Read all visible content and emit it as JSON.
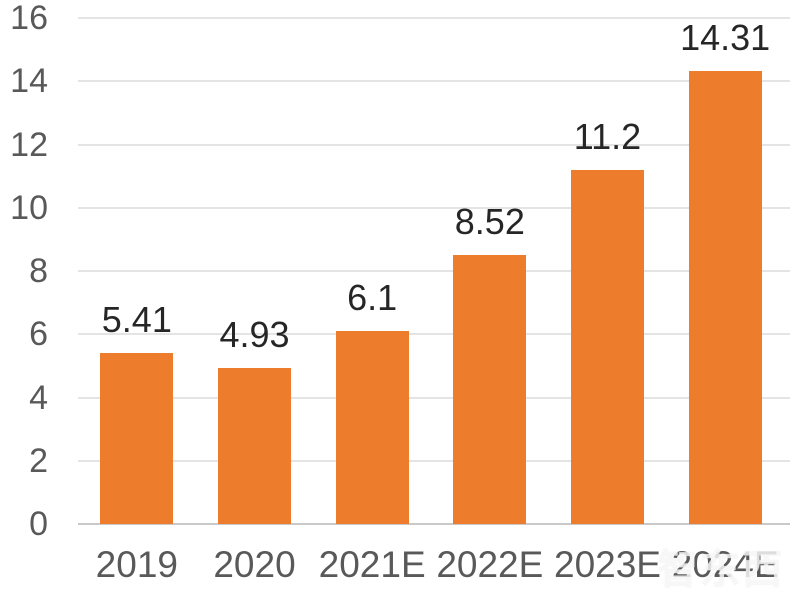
{
  "chart_data": {
    "type": "bar",
    "categories": [
      "2019",
      "2020",
      "2021E",
      "2022E",
      "2023E",
      "2024E"
    ],
    "values": [
      5.41,
      4.93,
      6.1,
      8.52,
      11.2,
      14.31
    ],
    "value_labels": [
      "5.41",
      "4.93",
      "6.1",
      "8.52",
      "11.2",
      "14.31"
    ],
    "title": "",
    "xlabel": "",
    "ylabel": "",
    "ylim": [
      0,
      16
    ],
    "yticks": [
      0,
      2,
      4,
      6,
      8,
      10,
      12,
      14,
      16
    ],
    "grid": true,
    "legend_position": "none",
    "bar_color": "#ed7d2c",
    "value_label_color": "#262626",
    "axis_text_color": "#595959",
    "gridline_color": "#e4e4e4",
    "baseline_color": "#c9c9c9"
  },
  "watermark": {
    "text": "智东西"
  }
}
